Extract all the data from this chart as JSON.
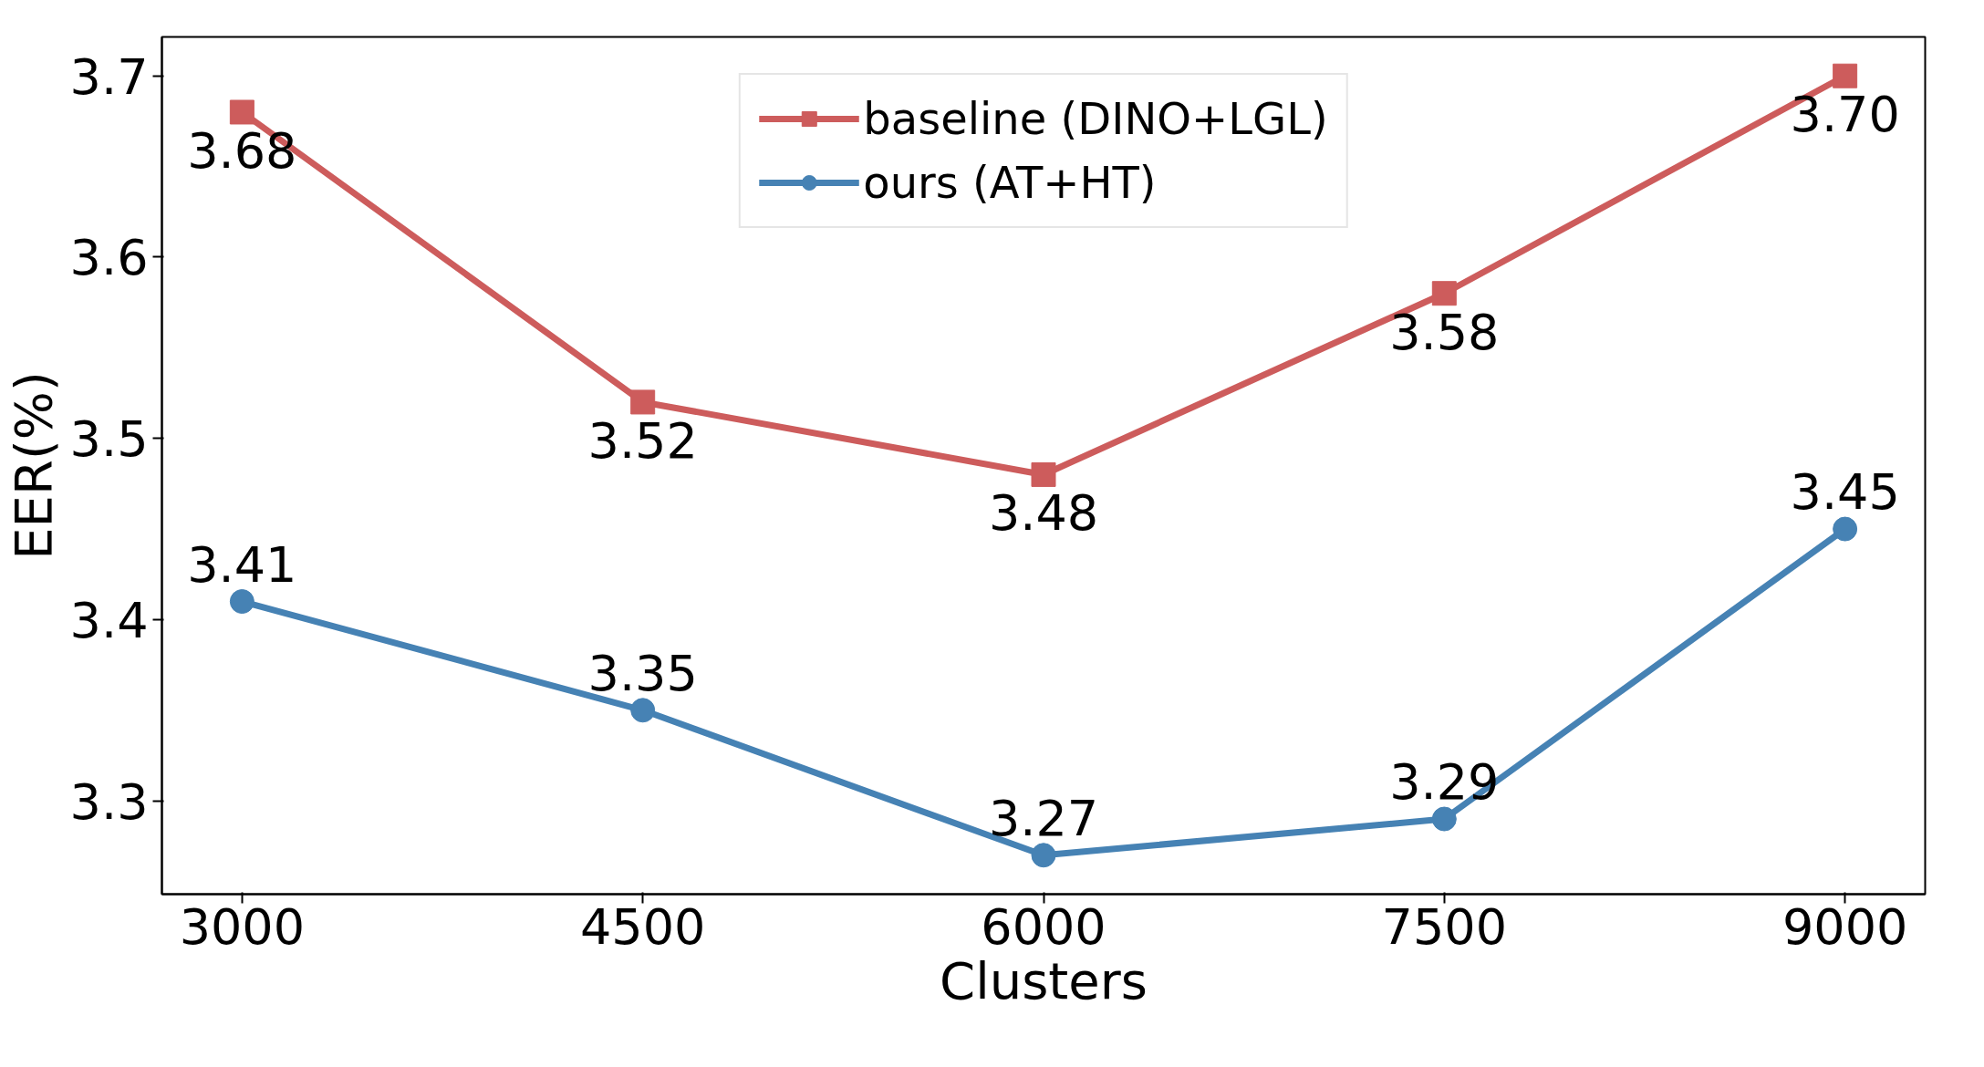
{
  "chart_data": {
    "type": "line",
    "xlabel": "Clusters",
    "ylabel": "EER(%)",
    "x": [
      3000,
      4500,
      6000,
      7500,
      9000
    ],
    "series": [
      {
        "name": "baseline (DINO+LGL)",
        "color": "#cd5c5c",
        "marker": "square",
        "values": [
          3.68,
          3.52,
          3.48,
          3.58,
          3.7
        ],
        "value_labels": [
          "3.68",
          "3.52",
          "3.48",
          "3.58",
          "3.70"
        ]
      },
      {
        "name": "ours (AT+HT)",
        "color": "#4682b4",
        "marker": "circle",
        "values": [
          3.41,
          3.35,
          3.27,
          3.29,
          3.45
        ],
        "value_labels": [
          "3.41",
          "3.35",
          "3.27",
          "3.29",
          "3.45"
        ]
      }
    ],
    "xlim": [
      2700,
      9300
    ],
    "ylim": [
      3.2485,
      3.7215
    ],
    "xticks": [
      3000,
      4500,
      6000,
      7500,
      9000
    ],
    "yticks": [
      3.3,
      3.4,
      3.5,
      3.6,
      3.7
    ],
    "legend": "top",
    "grid": false,
    "line_style": "solid"
  }
}
